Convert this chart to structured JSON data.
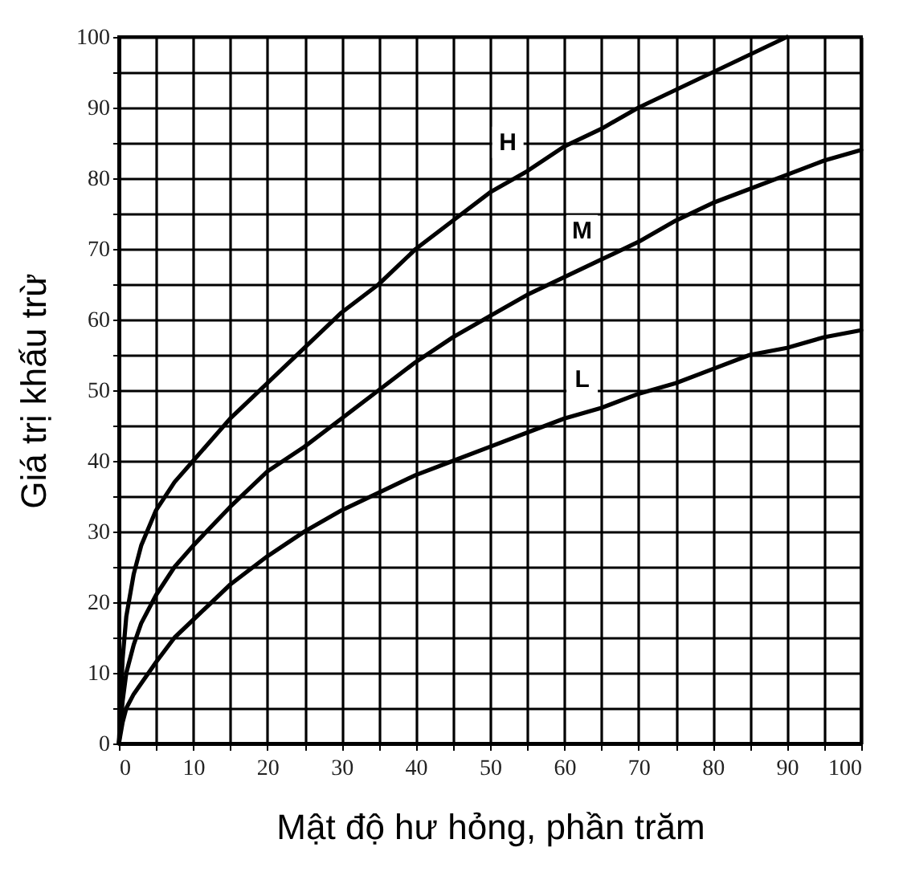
{
  "chart_data": {
    "type": "line",
    "xlabel": "Mật độ hư hỏng, phần trăm",
    "ylabel": "Giá trị khấu trừ",
    "xlim": [
      0,
      100
    ],
    "ylim": [
      0,
      100
    ],
    "xticks": [
      0,
      {
        "value": 5,
        "label": null
      },
      10,
      {
        "value": 15,
        "label": null
      },
      20,
      {
        "value": 25,
        "label": null
      },
      30,
      {
        "value": 35,
        "label": null
      },
      40,
      {
        "value": 45,
        "label": null
      },
      50,
      {
        "value": 55,
        "label": null
      },
      60,
      {
        "value": 65,
        "label": null
      },
      70,
      {
        "value": 75,
        "label": null
      },
      80,
      {
        "value": 85,
        "label": null
      },
      90,
      {
        "value": 95,
        "label": null
      },
      100
    ],
    "yticks": [
      0,
      {
        "value": 5,
        "label": null
      },
      10,
      {
        "value": 15,
        "label": null
      },
      20,
      {
        "value": 25,
        "label": null
      },
      30,
      {
        "value": 35,
        "label": null
      },
      40,
      {
        "value": 45,
        "label": null
      },
      50,
      {
        "value": 55,
        "label": null
      },
      60,
      {
        "value": 65,
        "label": null
      },
      70,
      {
        "value": 75,
        "label": null
      },
      80,
      {
        "value": 85,
        "label": null
      },
      90,
      {
        "value": 95,
        "label": null
      },
      100
    ],
    "grid": true,
    "legend": false,
    "marker": "none",
    "line_style": "solid",
    "series": [
      {
        "name": "H",
        "color": "#000000",
        "x": [
          0,
          0.5,
          1,
          2,
          3,
          5,
          7.5,
          10,
          15,
          20,
          25,
          30,
          35,
          40,
          45,
          50,
          55,
          60,
          65,
          70,
          75,
          80,
          85,
          90
        ],
        "values": [
          0,
          12,
          18,
          24,
          28,
          33,
          37,
          40,
          46,
          51,
          56,
          61,
          65,
          70,
          74,
          78,
          81,
          84.5,
          87,
          90,
          92.5,
          95,
          97.5,
          100
        ]
      },
      {
        "name": "M",
        "color": "#000000",
        "x": [
          0,
          0.5,
          1,
          2,
          3,
          5,
          7.5,
          10,
          15,
          20,
          25,
          30,
          35,
          40,
          45,
          50,
          55,
          60,
          65,
          70,
          75,
          80,
          85,
          90,
          95,
          100
        ],
        "values": [
          0,
          6,
          10,
          14,
          17,
          21,
          25,
          28,
          33.5,
          38.5,
          42,
          46,
          50,
          54,
          57.5,
          60.5,
          63.5,
          66,
          68.5,
          71,
          74,
          76.5,
          78.5,
          80.5,
          82.5,
          84
        ]
      },
      {
        "name": "L",
        "color": "#000000",
        "x": [
          0,
          0.5,
          1,
          2,
          5,
          7.5,
          10,
          15,
          20,
          25,
          30,
          35,
          40,
          45,
          50,
          55,
          60,
          65,
          70,
          75,
          80,
          85,
          90,
          95,
          100
        ],
        "values": [
          0,
          3,
          5,
          7,
          11.5,
          15,
          17.5,
          22.5,
          26.5,
          30,
          33,
          35.5,
          38,
          40,
          42,
          44,
          46,
          47.5,
          49.5,
          51,
          53,
          55,
          56,
          57.5,
          58.5
        ]
      }
    ]
  }
}
